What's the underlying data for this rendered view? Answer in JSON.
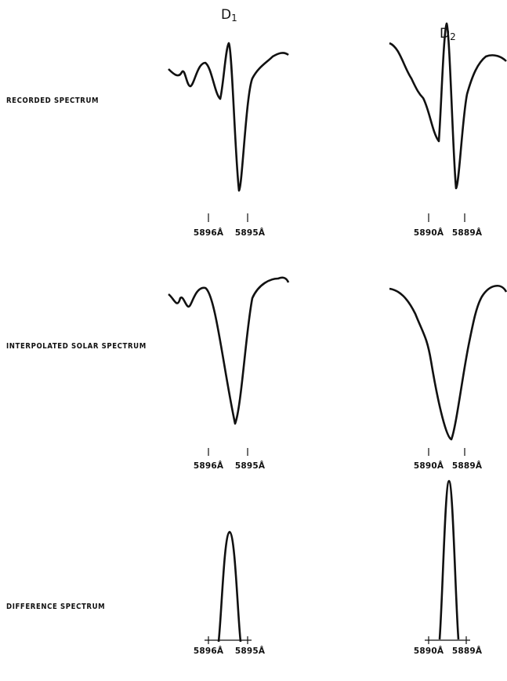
{
  "columns": [
    {
      "main": "D",
      "sub": "1"
    },
    {
      "main": "D",
      "sub": "2"
    }
  ],
  "rows": [
    {
      "label": "RECORDED SPECTRUM",
      "ticks": [
        [
          "5896Å",
          "5895Å"
        ],
        [
          "5890Å",
          "5889Å"
        ]
      ]
    },
    {
      "label": "INTERPOLATED SOLAR SPECTRUM",
      "ticks": [
        [
          "5896Å",
          "5895Å"
        ],
        [
          "5890Å",
          "5889Å"
        ]
      ]
    },
    {
      "label": "DIFFERENCE SPECTRUM",
      "ticks": [
        [
          "5896Å",
          "5895Å"
        ],
        [
          "5890Å",
          "5889Å"
        ]
      ]
    }
  ]
}
